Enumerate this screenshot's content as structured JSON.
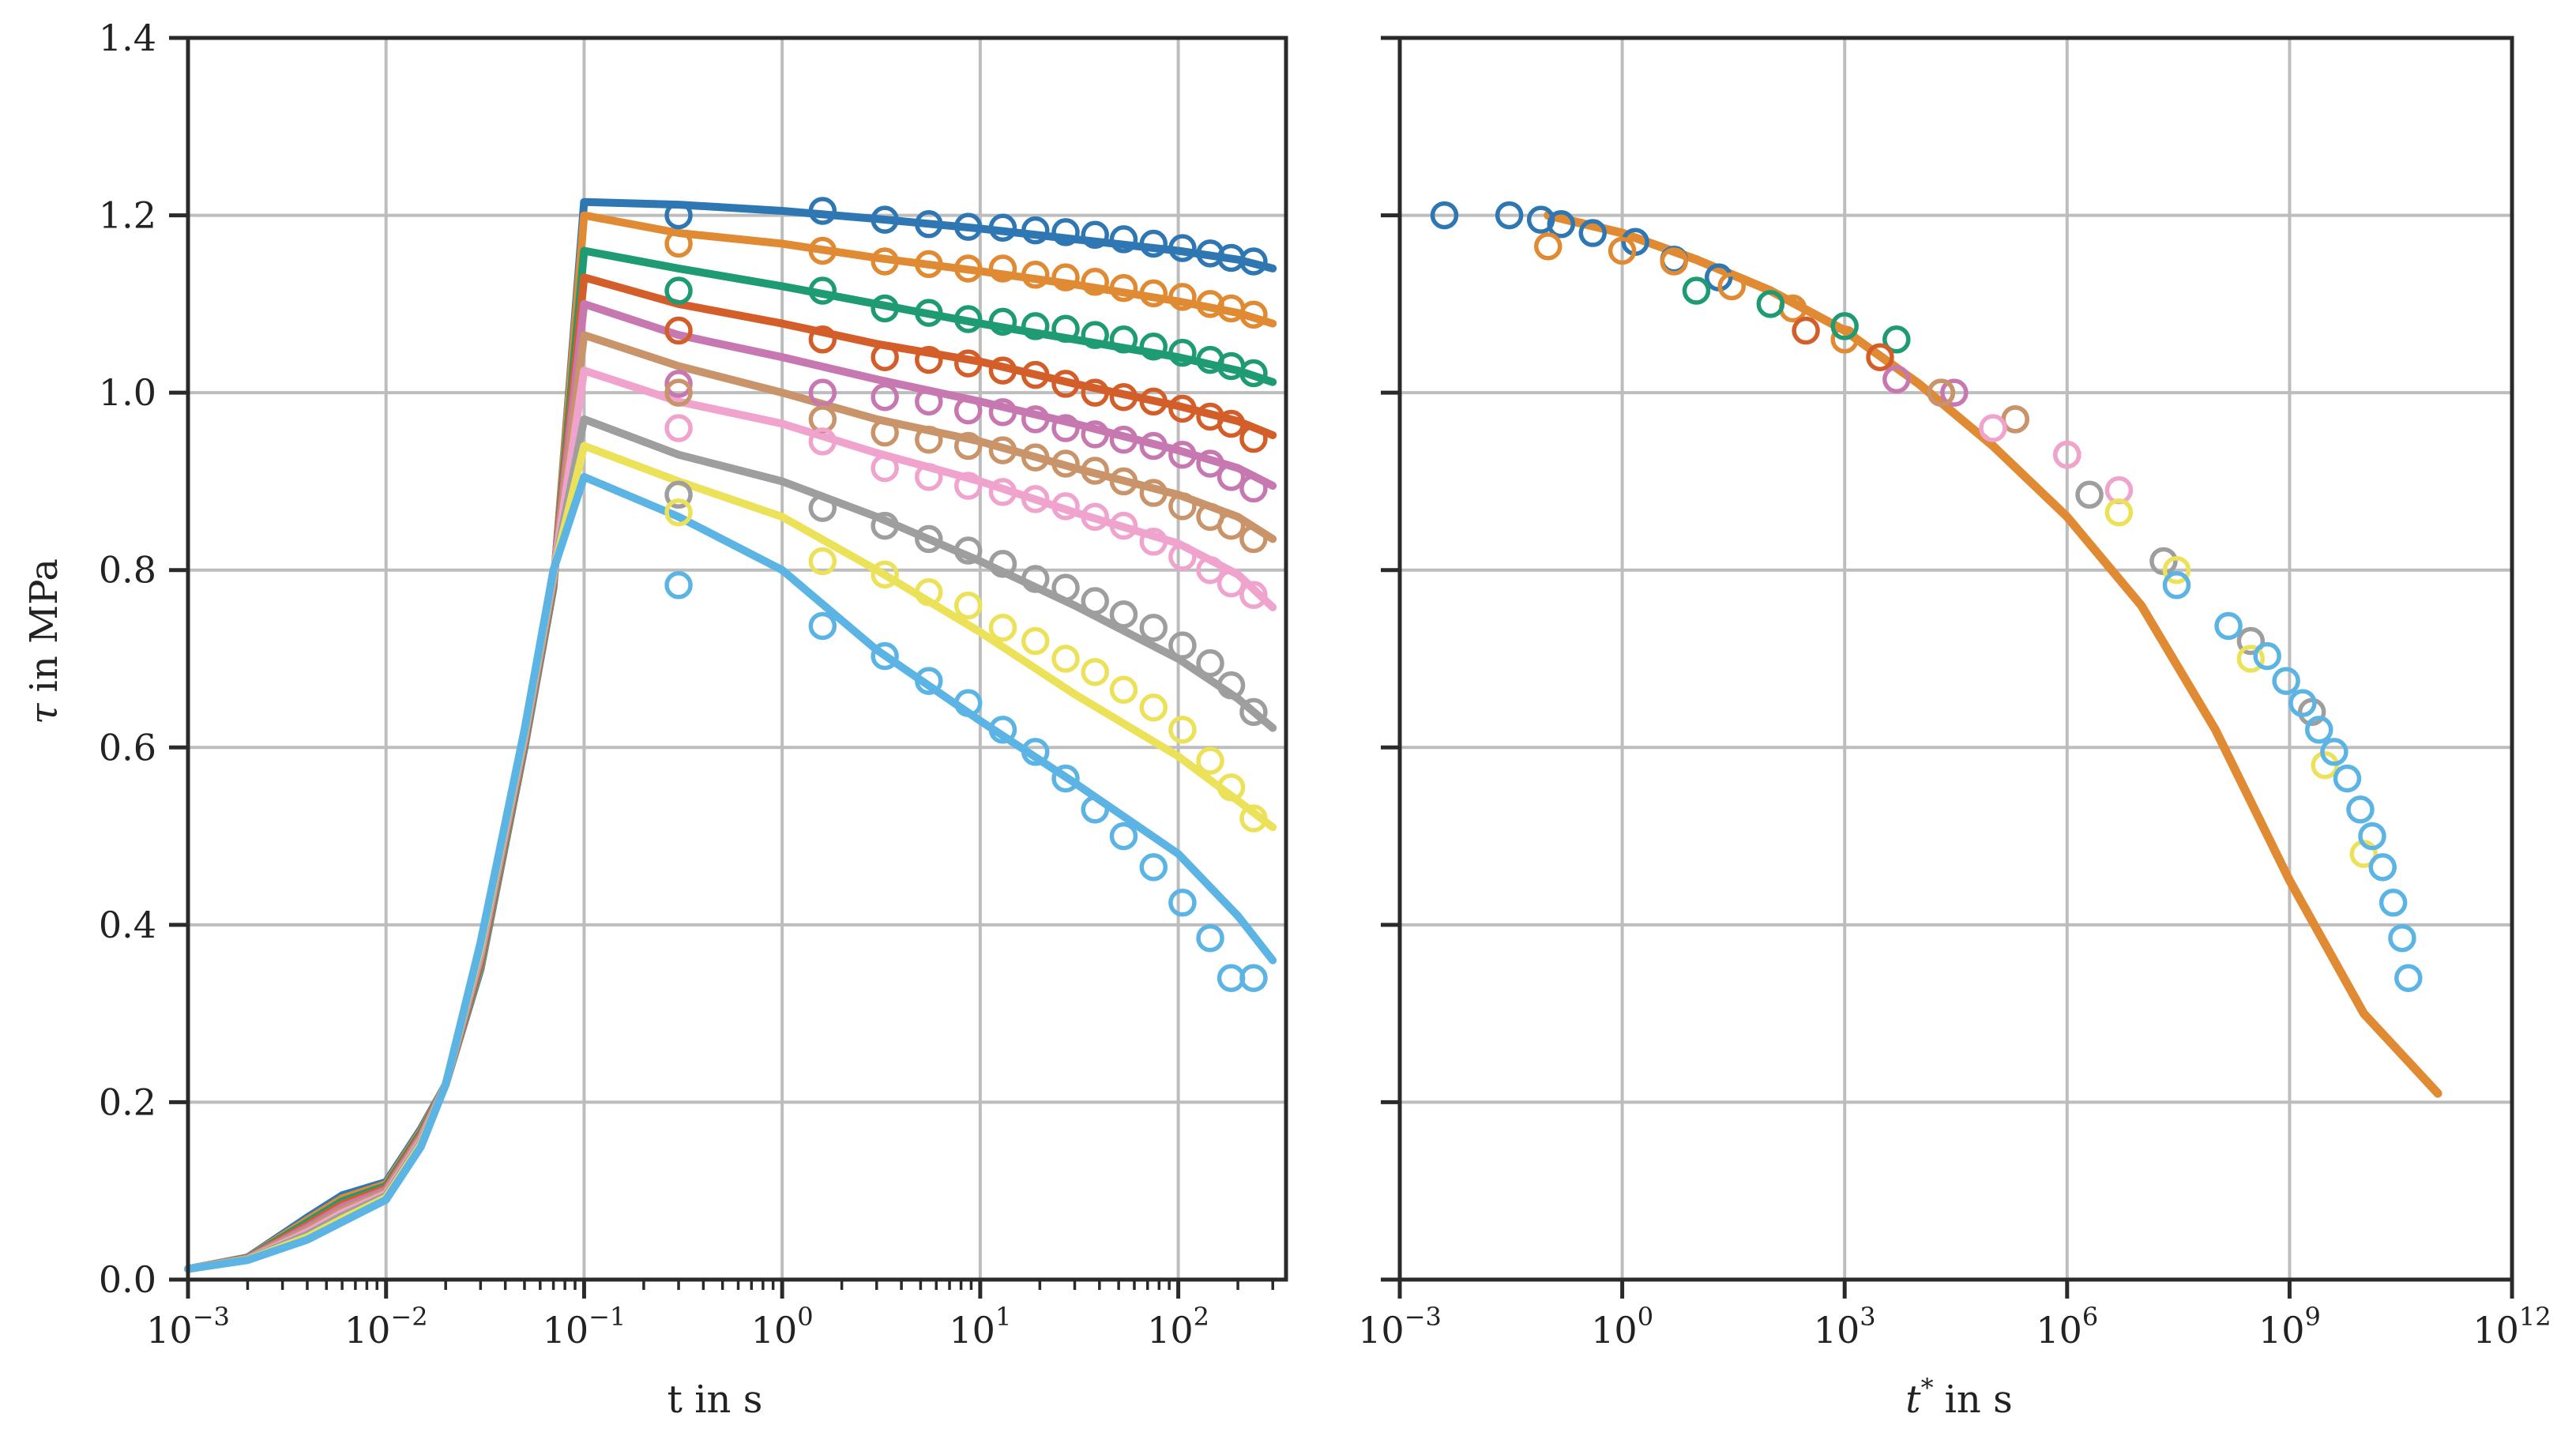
{
  "chart_data": [
    {
      "type": "line",
      "xscale": "log",
      "xlim": [
        0.001,
        350
      ],
      "ylim": [
        0.0,
        1.4
      ],
      "xlabel": "t in s",
      "ylabel": "τ in MPa",
      "ylabel_parts": {
        "symbol": "τ",
        "unit": "in MPa"
      },
      "xtick_labels": [
        {
          "value": 0.001,
          "base": "10",
          "exp": "−3"
        },
        {
          "value": 0.01,
          "base": "10",
          "exp": "−2"
        },
        {
          "value": 0.1,
          "base": "10",
          "exp": "−1"
        },
        {
          "value": 1,
          "base": "10",
          "exp": "0"
        },
        {
          "value": 10,
          "base": "10",
          "exp": "1"
        },
        {
          "value": 100,
          "base": "10",
          "exp": "2"
        }
      ],
      "ytick_labels": [
        "0.0",
        "0.2",
        "0.4",
        "0.6",
        "0.8",
        "1.0",
        "1.2",
        "1.4"
      ],
      "grid": true,
      "loading_curve_t": [
        0.001,
        0.002,
        0.004,
        0.006,
        0.01,
        0.015,
        0.02,
        0.03,
        0.05,
        0.07,
        0.1
      ],
      "measurement_t": [
        0.3,
        1.6,
        3.3,
        5.5,
        8.7,
        13,
        19,
        27,
        38,
        53,
        75,
        105,
        145,
        185,
        240
      ],
      "model_t": [
        0.1,
        0.3,
        1,
        3,
        10,
        30,
        100,
        200,
        300
      ],
      "series": [
        {
          "name": "series 1",
          "color": "#2f77b2",
          "model": [
            1.215,
            1.212,
            1.205,
            1.196,
            1.185,
            1.173,
            1.16,
            1.15,
            1.14
          ],
          "measured": [
            1.2,
            1.205,
            1.195,
            1.19,
            1.187,
            1.186,
            1.183,
            1.181,
            1.178,
            1.173,
            1.168,
            1.163,
            1.157,
            1.152,
            1.148
          ]
        },
        {
          "name": "series 2",
          "color": "#e08a33",
          "model": [
            1.2,
            1.18,
            1.168,
            1.152,
            1.137,
            1.122,
            1.103,
            1.09,
            1.078
          ],
          "measured": [
            1.168,
            1.16,
            1.148,
            1.145,
            1.14,
            1.14,
            1.133,
            1.13,
            1.125,
            1.118,
            1.112,
            1.108,
            1.1,
            1.095,
            1.088
          ]
        },
        {
          "name": "series 3",
          "color": "#1e9b73",
          "model": [
            1.16,
            1.14,
            1.12,
            1.1,
            1.078,
            1.06,
            1.04,
            1.025,
            1.012
          ],
          "measured": [
            1.115,
            1.115,
            1.095,
            1.09,
            1.083,
            1.08,
            1.075,
            1.072,
            1.065,
            1.06,
            1.052,
            1.045,
            1.037,
            1.03,
            1.022
          ]
        },
        {
          "name": "series 4",
          "color": "#d45e2a",
          "model": [
            1.13,
            1.1,
            1.078,
            1.055,
            1.035,
            1.01,
            0.985,
            0.968,
            0.952
          ],
          "measured": [
            1.07,
            1.06,
            1.04,
            1.037,
            1.033,
            1.025,
            1.02,
            1.01,
            1.0,
            0.995,
            0.99,
            0.982,
            0.973,
            0.965,
            0.948
          ]
        },
        {
          "name": "series 5",
          "color": "#c878b0",
          "model": [
            1.1,
            1.065,
            1.04,
            1.015,
            0.99,
            0.965,
            0.935,
            0.915,
            0.895
          ],
          "measured": [
            1.01,
            1.0,
            0.995,
            0.99,
            0.98,
            0.978,
            0.97,
            0.96,
            0.953,
            0.947,
            0.94,
            0.93,
            0.92,
            0.905,
            0.892
          ]
        },
        {
          "name": "series 6",
          "color": "#c9946a",
          "model": [
            1.065,
            1.03,
            1.0,
            0.97,
            0.945,
            0.915,
            0.885,
            0.86,
            0.835
          ],
          "measured": [
            1.0,
            0.97,
            0.955,
            0.947,
            0.94,
            0.935,
            0.927,
            0.92,
            0.912,
            0.9,
            0.887,
            0.872,
            0.86,
            0.85,
            0.835
          ]
        },
        {
          "name": "series 7",
          "color": "#f0a3cc",
          "model": [
            1.025,
            0.99,
            0.965,
            0.932,
            0.9,
            0.865,
            0.83,
            0.795,
            0.758
          ],
          "measured": [
            0.96,
            0.945,
            0.915,
            0.905,
            0.895,
            0.888,
            0.88,
            0.872,
            0.86,
            0.85,
            0.832,
            0.815,
            0.8,
            0.785,
            0.772
          ]
        },
        {
          "name": "series 8",
          "color": "#9e9e9e",
          "model": [
            0.97,
            0.93,
            0.9,
            0.86,
            0.81,
            0.76,
            0.7,
            0.655,
            0.622
          ],
          "measured": [
            0.885,
            0.87,
            0.85,
            0.835,
            0.822,
            0.807,
            0.79,
            0.78,
            0.765,
            0.75,
            0.735,
            0.715,
            0.695,
            0.67,
            0.64
          ]
        },
        {
          "name": "series 9",
          "color": "#ece25a",
          "model": [
            0.94,
            0.9,
            0.86,
            0.8,
            0.73,
            0.66,
            0.59,
            0.54,
            0.51
          ],
          "measured": [
            0.865,
            0.81,
            0.795,
            0.775,
            0.76,
            0.735,
            0.72,
            0.7,
            0.685,
            0.665,
            0.645,
            0.62,
            0.585,
            0.555,
            0.52
          ]
        },
        {
          "name": "series 10",
          "color": "#5bb4e3",
          "model": [
            0.905,
            0.86,
            0.8,
            0.71,
            0.63,
            0.56,
            0.48,
            0.41,
            0.36
          ],
          "measured": [
            0.783,
            0.737,
            0.703,
            0.675,
            0.65,
            0.62,
            0.595,
            0.565,
            0.53,
            0.5,
            0.465,
            0.425,
            0.385,
            0.34,
            0.34
          ]
        }
      ]
    },
    {
      "type": "line",
      "xscale": "log",
      "xlim": [
        0.001,
        1000000000000.0
      ],
      "ylim": [
        0.0,
        1.4
      ],
      "xlabel_parts": {
        "symbol": "t",
        "sup": "*",
        "unit": "in s"
      },
      "xtick_labels": [
        {
          "value": 0.001,
          "base": "10",
          "exp": "−3"
        },
        {
          "value": 1,
          "base": "10",
          "exp": "0"
        },
        {
          "value": 1000,
          "base": "10",
          "exp": "3"
        },
        {
          "value": 1000000.0,
          "base": "10",
          "exp": "6"
        },
        {
          "value": 1000000000.0,
          "base": "10",
          "exp": "9"
        },
        {
          "value": 1000000000000.0,
          "base": "10",
          "exp": "12"
        }
      ],
      "grid": true,
      "master_curve": {
        "color": "#e08a33",
        "x": [
          0.1,
          1,
          10,
          100,
          1000,
          10000,
          100000,
          1000000,
          10000000,
          100000000,
          1000000000,
          10000000000,
          100000000000
        ],
        "y": [
          1.2,
          1.18,
          1.15,
          1.115,
          1.07,
          1.01,
          0.94,
          0.86,
          0.76,
          0.62,
          0.45,
          0.3,
          0.21
        ]
      },
      "master_points": [
        {
          "color": "#2f77b2",
          "points": [
            [
              0.004,
              1.2
            ],
            [
              0.03,
              1.2
            ],
            [
              0.08,
              1.195
            ],
            [
              0.15,
              1.19
            ],
            [
              0.4,
              1.18
            ],
            [
              1.5,
              1.17
            ],
            [
              5,
              1.15
            ],
            [
              20,
              1.13
            ]
          ]
        },
        {
          "color": "#e08a33",
          "points": [
            [
              0.1,
              1.165
            ],
            [
              1,
              1.16
            ],
            [
              5,
              1.148
            ],
            [
              30,
              1.12
            ],
            [
              200,
              1.095
            ],
            [
              1000,
              1.06
            ]
          ]
        },
        {
          "color": "#1e9b73",
          "points": [
            [
              10,
              1.115
            ],
            [
              100,
              1.1
            ],
            [
              1000,
              1.075
            ],
            [
              5000,
              1.06
            ]
          ]
        },
        {
          "color": "#d45e2a",
          "points": [
            [
              300,
              1.07
            ],
            [
              3000,
              1.04
            ],
            [
              20000,
              1.0
            ]
          ]
        },
        {
          "color": "#c878b0",
          "points": [
            [
              5000,
              1.015
            ],
            [
              30000,
              1.0
            ],
            [
              200000,
              0.97
            ]
          ]
        },
        {
          "color": "#c9946a",
          "points": [
            [
              20000,
              1.0
            ],
            [
              200000,
              0.97
            ],
            [
              1000000,
              0.93
            ]
          ]
        },
        {
          "color": "#f0a3cc",
          "points": [
            [
              100000,
              0.96
            ],
            [
              1000000,
              0.93
            ],
            [
              5000000,
              0.89
            ]
          ]
        },
        {
          "color": "#9e9e9e",
          "points": [
            [
              2000000,
              0.885
            ],
            [
              20000000,
              0.81
            ],
            [
              300000000,
              0.72
            ],
            [
              2000000000,
              0.64
            ]
          ]
        },
        {
          "color": "#ece25a",
          "points": [
            [
              5000000,
              0.865
            ],
            [
              30000000,
              0.8
            ],
            [
              300000000,
              0.7
            ],
            [
              3000000000,
              0.58
            ],
            [
              10000000000,
              0.48
            ]
          ]
        },
        {
          "color": "#5bb4e3",
          "points": [
            [
              30000000,
              0.783
            ],
            [
              150000000,
              0.737
            ],
            [
              500000000,
              0.703
            ],
            [
              900000000,
              0.675
            ],
            [
              1500000000,
              0.65
            ],
            [
              2500000000,
              0.62
            ],
            [
              4000000000,
              0.595
            ],
            [
              6000000000,
              0.565
            ],
            [
              9000000000,
              0.53
            ],
            [
              13000000000,
              0.5
            ],
            [
              18000000000,
              0.465
            ],
            [
              25000000000,
              0.425
            ],
            [
              33000000000,
              0.385
            ],
            [
              40000000000,
              0.34
            ]
          ]
        }
      ]
    }
  ]
}
